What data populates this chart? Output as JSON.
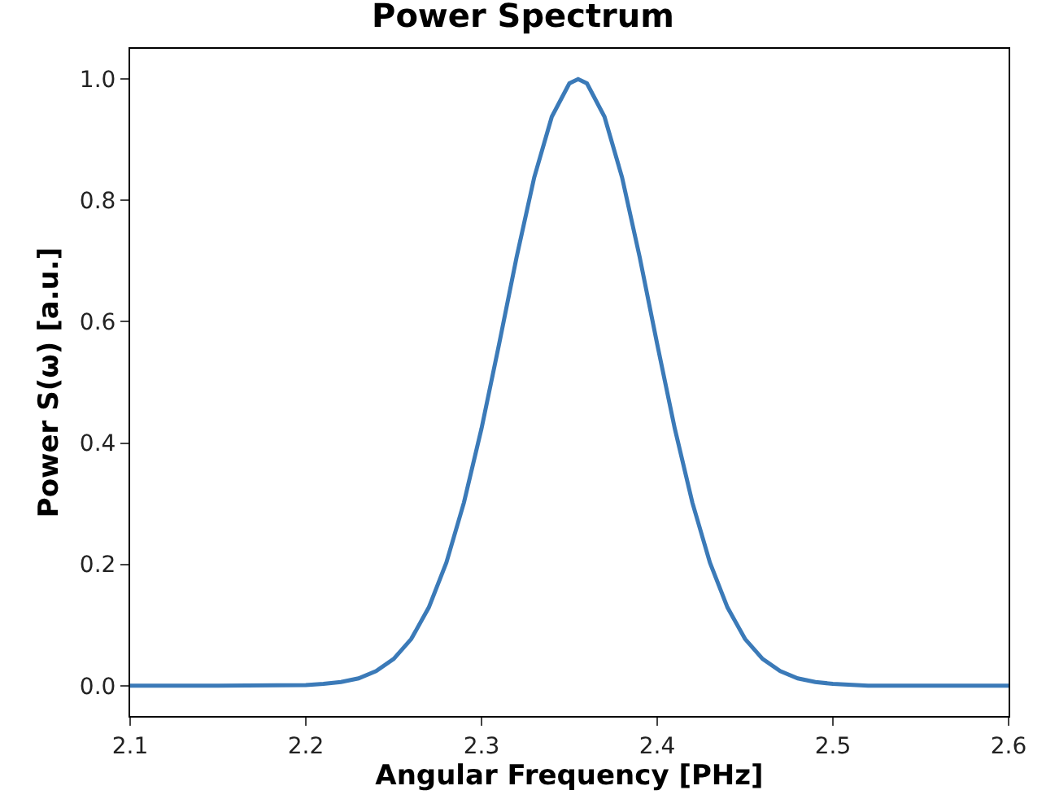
{
  "chart_data": {
    "type": "line",
    "title": "Power Spectrum",
    "xlabel": "Angular Frequency [PHz]",
    "ylabel": "Power S(ω) [a.u.]",
    "x": [
      2.1,
      2.15,
      2.2,
      2.21,
      2.22,
      2.23,
      2.24,
      2.25,
      2.26,
      2.27,
      2.28,
      2.29,
      2.3,
      2.31,
      2.32,
      2.33,
      2.34,
      2.35,
      2.355,
      2.36,
      2.37,
      2.38,
      2.39,
      2.4,
      2.41,
      2.42,
      2.43,
      2.44,
      2.45,
      2.46,
      2.47,
      2.48,
      2.49,
      2.5,
      2.52,
      2.55,
      2.6
    ],
    "series": [
      {
        "color": "#3b7ab8",
        "values": [
          0.0,
          0.0,
          0.001,
          0.003,
          0.006,
          0.012,
          0.024,
          0.044,
          0.077,
          0.129,
          0.203,
          0.302,
          0.424,
          0.563,
          0.707,
          0.838,
          0.938,
          0.993,
          1.0,
          0.993,
          0.938,
          0.838,
          0.707,
          0.563,
          0.424,
          0.302,
          0.203,
          0.129,
          0.077,
          0.044,
          0.024,
          0.012,
          0.006,
          0.003,
          0.0,
          0.0,
          0.0
        ]
      }
    ],
    "xlim": [
      2.1,
      2.6
    ],
    "xticks": [
      2.1,
      2.2,
      2.3,
      2.4,
      2.5,
      2.6
    ],
    "ylim": [
      -0.05,
      1.05
    ],
    "yticks": [
      {
        "value": 0,
        "label": "0.0"
      },
      0.2,
      0.4,
      0.6,
      0.8,
      {
        "value": 1,
        "label": "1.0"
      }
    ],
    "grid": false,
    "marker": "none",
    "line_style": "solid"
  }
}
